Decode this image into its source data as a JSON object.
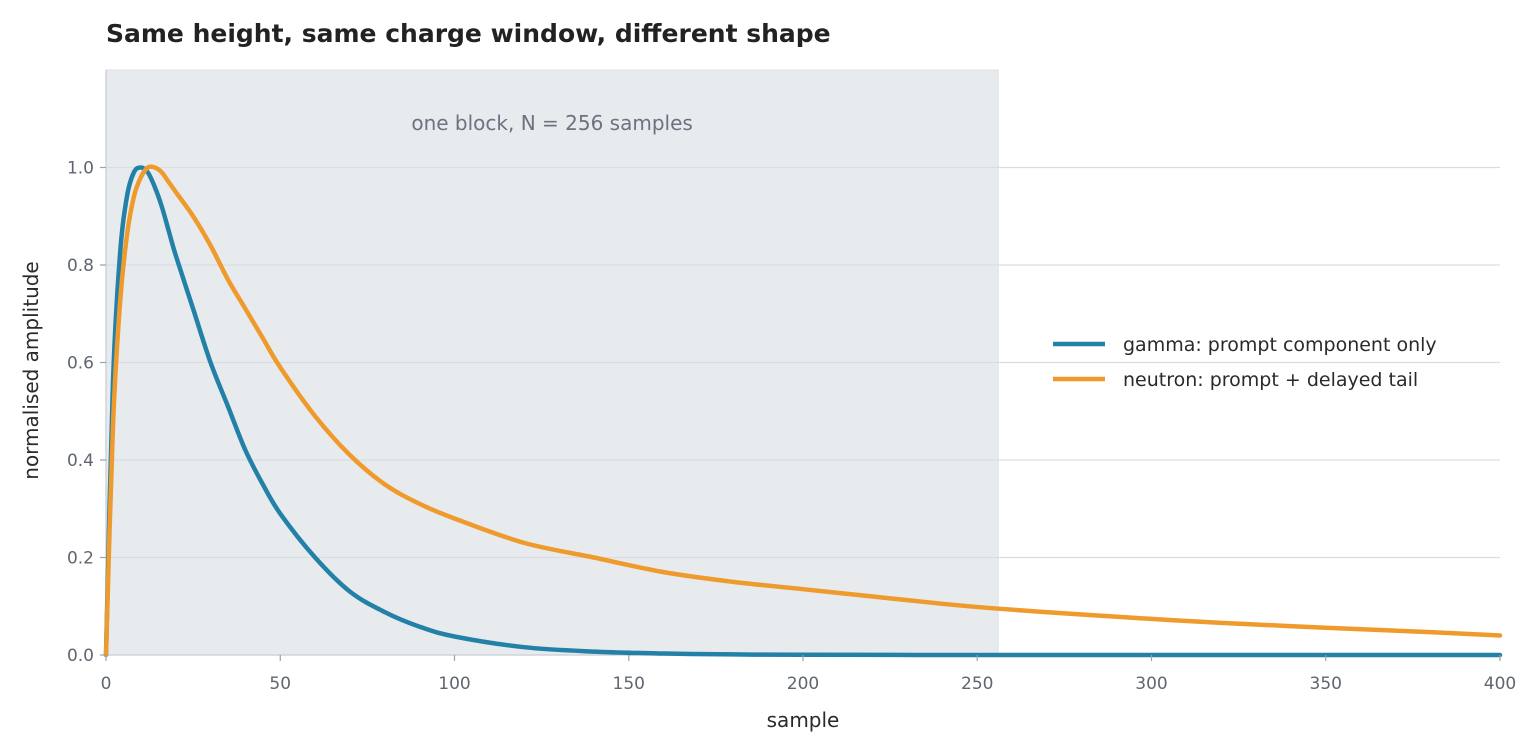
{
  "chart_data": {
    "type": "line",
    "title": "Same height, same charge window, different shape",
    "xlabel": "sample",
    "ylabel": "normalised amplitude",
    "xlim": [
      0,
      400
    ],
    "ylim": [
      0,
      1.2
    ],
    "x_ticks": [
      0,
      50,
      100,
      150,
      200,
      250,
      300,
      350,
      400
    ],
    "y_ticks": [
      0.0,
      0.2,
      0.4,
      0.6,
      0.8,
      1.0
    ],
    "x_tick_labels": [
      "0",
      "50",
      "100",
      "150",
      "200",
      "250",
      "300",
      "350",
      "400"
    ],
    "y_tick_labels": [
      "0.0",
      "0.2",
      "0.4",
      "0.6",
      "0.8",
      "1.0"
    ],
    "grid": "horizontal",
    "legend_position": "right",
    "shaded_region": {
      "x_start": 0,
      "x_end": 256,
      "label": "one block, N = 256 samples",
      "color": "#e8ebee"
    },
    "series": [
      {
        "name": "gamma: prompt component only",
        "color": "#2381a8",
        "x": [
          0,
          2,
          4,
          6,
          8,
          10,
          12,
          14,
          16,
          18,
          20,
          25,
          30,
          35,
          40,
          45,
          50,
          60,
          70,
          80,
          90,
          100,
          120,
          140,
          160,
          180,
          200,
          250,
          300,
          350,
          400
        ],
        "y": [
          0.0,
          0.56,
          0.82,
          0.94,
          0.99,
          1.0,
          0.99,
          0.96,
          0.92,
          0.87,
          0.82,
          0.71,
          0.6,
          0.51,
          0.42,
          0.35,
          0.29,
          0.2,
          0.13,
          0.088,
          0.058,
          0.038,
          0.016,
          0.007,
          0.003,
          0.0012,
          0.0005,
          0.0,
          0.0,
          0.0,
          0.0
        ]
      },
      {
        "name": "neutron: prompt + delayed tail",
        "color": "#ef9a2c",
        "x": [
          0,
          2,
          4,
          6,
          8,
          10,
          12,
          14,
          16,
          18,
          20,
          25,
          30,
          35,
          40,
          45,
          50,
          60,
          70,
          80,
          90,
          100,
          120,
          140,
          160,
          180,
          200,
          220,
          240,
          256,
          280,
          300,
          320,
          350,
          380,
          400
        ],
        "y": [
          0.0,
          0.47,
          0.72,
          0.86,
          0.94,
          0.98,
          1.0,
          1.0,
          0.99,
          0.97,
          0.95,
          0.9,
          0.84,
          0.77,
          0.71,
          0.65,
          0.59,
          0.49,
          0.41,
          0.35,
          0.31,
          0.28,
          0.23,
          0.2,
          0.17,
          0.15,
          0.135,
          0.12,
          0.105,
          0.095,
          0.083,
          0.074,
          0.066,
          0.056,
          0.047,
          0.04
        ]
      }
    ]
  }
}
